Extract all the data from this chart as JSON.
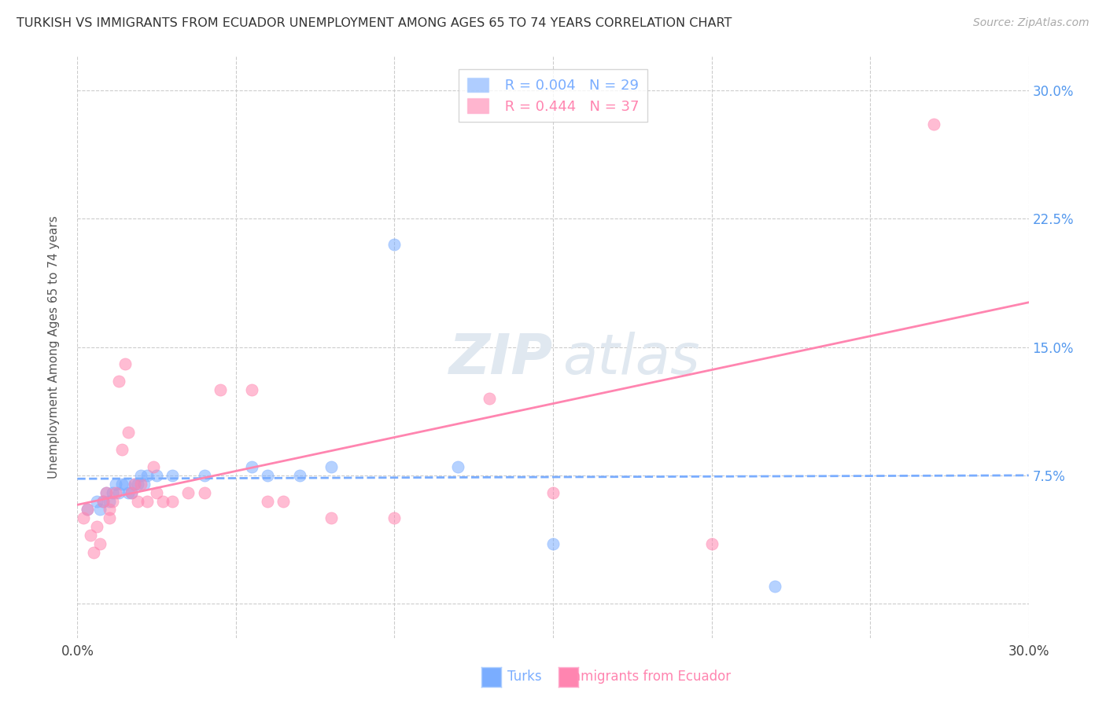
{
  "title": "TURKISH VS IMMIGRANTS FROM ECUADOR UNEMPLOYMENT AMONG AGES 65 TO 74 YEARS CORRELATION CHART",
  "source": "Source: ZipAtlas.com",
  "ylabel": "Unemployment Among Ages 65 to 74 years",
  "xlim": [
    0.0,
    0.3
  ],
  "ylim": [
    -0.02,
    0.32
  ],
  "turks_R": 0.004,
  "turks_N": 29,
  "ecuador_R": 0.444,
  "ecuador_N": 37,
  "turks_color": "#7aadff",
  "ecuador_color": "#ff85b0",
  "background_color": "#ffffff",
  "turks_x": [
    0.003,
    0.006,
    0.007,
    0.008,
    0.009,
    0.01,
    0.011,
    0.012,
    0.013,
    0.014,
    0.015,
    0.016,
    0.017,
    0.018,
    0.019,
    0.02,
    0.021,
    0.022,
    0.025,
    0.03,
    0.04,
    0.055,
    0.06,
    0.07,
    0.08,
    0.1,
    0.12,
    0.15,
    0.22
  ],
  "turks_y": [
    0.055,
    0.06,
    0.055,
    0.06,
    0.065,
    0.06,
    0.065,
    0.07,
    0.065,
    0.07,
    0.07,
    0.065,
    0.065,
    0.07,
    0.07,
    0.075,
    0.07,
    0.075,
    0.075,
    0.075,
    0.075,
    0.08,
    0.075,
    0.075,
    0.08,
    0.21,
    0.08,
    0.035,
    0.01
  ],
  "ecuador_x": [
    0.002,
    0.003,
    0.004,
    0.005,
    0.006,
    0.007,
    0.008,
    0.009,
    0.01,
    0.01,
    0.011,
    0.012,
    0.013,
    0.014,
    0.015,
    0.016,
    0.017,
    0.018,
    0.019,
    0.02,
    0.022,
    0.024,
    0.025,
    0.027,
    0.03,
    0.035,
    0.04,
    0.045,
    0.055,
    0.06,
    0.065,
    0.08,
    0.1,
    0.13,
    0.15,
    0.2,
    0.27
  ],
  "ecuador_y": [
    0.05,
    0.055,
    0.04,
    0.03,
    0.045,
    0.035,
    0.06,
    0.065,
    0.055,
    0.05,
    0.06,
    0.065,
    0.13,
    0.09,
    0.14,
    0.1,
    0.065,
    0.07,
    0.06,
    0.07,
    0.06,
    0.08,
    0.065,
    0.06,
    0.06,
    0.065,
    0.065,
    0.125,
    0.125,
    0.06,
    0.06,
    0.05,
    0.05,
    0.12,
    0.065,
    0.035,
    0.28
  ]
}
